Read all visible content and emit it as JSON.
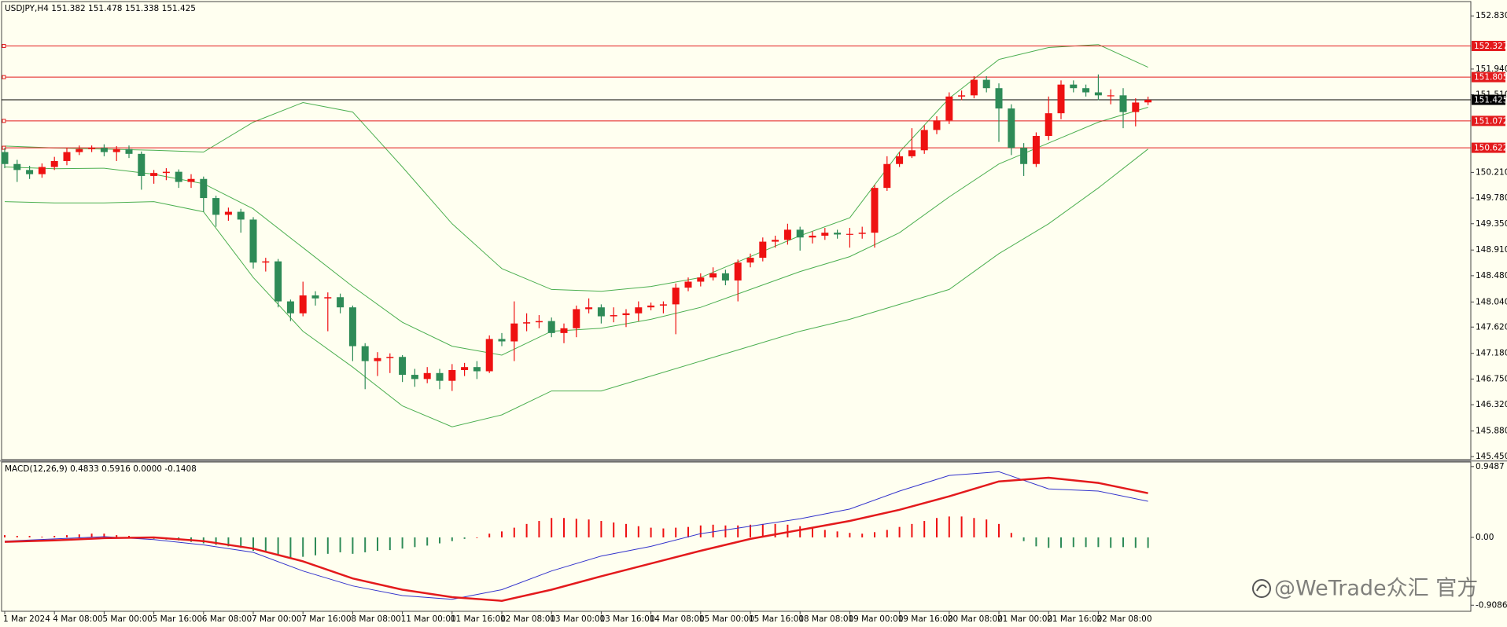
{
  "chart_data": [
    {
      "type": "candlestick",
      "title": "USDJPY,H4  151.382 151.478 151.338 151.425",
      "watermark": "@WeTrade众汇 官方",
      "x_labels": [
        "1 Mar 2024",
        "4 Mar 08:00",
        "5 Mar 00:00",
        "5 Mar 16:00",
        "6 Mar 08:00",
        "7 Mar 00:00",
        "7 Mar 16:00",
        "8 Mar 08:00",
        "11 Mar 00:00",
        "11 Mar 16:00",
        "12 Mar 08:00",
        "13 Mar 00:00",
        "13 Mar 16:00",
        "14 Mar 08:00",
        "15 Mar 00:00",
        "15 Mar 16:00",
        "18 Mar 08:00",
        "19 Mar 00:00",
        "19 Mar 16:00",
        "20 Mar 08:00",
        "21 Mar 00:00",
        "21 Mar 16:00",
        "22 Mar 08:00"
      ],
      "open": [
        150.55,
        150.35,
        150.25,
        150.18,
        150.3,
        150.4,
        150.55,
        150.6,
        150.62,
        150.55,
        150.6,
        150.52,
        150.15,
        150.2,
        150.22,
        150.05,
        150.1,
        149.78,
        149.5,
        149.55,
        149.42,
        148.7,
        148.72,
        148.05,
        147.85,
        148.15,
        148.1,
        148.12,
        147.95,
        147.3,
        147.05,
        147.1,
        147.12,
        146.82,
        146.75,
        146.85,
        146.72,
        146.9,
        146.95,
        146.88,
        147.42,
        147.38,
        147.68,
        147.7,
        147.72,
        147.52,
        147.6,
        147.92,
        147.95,
        147.8,
        147.82,
        147.85,
        147.95,
        147.98,
        148.0,
        148.28,
        148.38,
        148.45,
        148.52,
        148.4,
        148.7,
        148.78,
        149.05,
        149.08,
        149.25,
        149.12,
        149.15,
        149.2,
        149.17,
        149.18,
        149.2,
        149.95,
        150.35,
        150.48,
        150.58,
        150.92,
        151.08,
        151.48,
        151.5,
        151.76,
        151.62,
        151.28,
        150.62,
        150.35,
        150.82,
        151.2,
        151.68,
        151.62,
        151.55,
        151.5,
        151.5,
        151.22,
        151.382
      ],
      "high": [
        150.62,
        150.42,
        150.32,
        150.36,
        150.47,
        150.62,
        150.66,
        150.66,
        150.68,
        150.65,
        150.66,
        150.56,
        150.25,
        150.28,
        150.26,
        150.18,
        150.14,
        149.82,
        149.62,
        149.6,
        149.46,
        148.78,
        148.76,
        148.08,
        148.38,
        148.22,
        148.2,
        148.18,
        147.98,
        147.35,
        147.2,
        147.18,
        147.15,
        146.92,
        146.95,
        146.92,
        147.0,
        147.02,
        147.05,
        147.48,
        147.52,
        148.05,
        147.85,
        147.82,
        147.78,
        147.68,
        147.98,
        148.1,
        148.0,
        147.95,
        147.92,
        148.05,
        148.03,
        148.05,
        148.35,
        148.45,
        148.52,
        148.62,
        148.58,
        148.75,
        148.85,
        149.12,
        149.15,
        149.35,
        149.3,
        149.22,
        149.28,
        149.25,
        149.28,
        149.3,
        150.0,
        150.48,
        150.55,
        150.95,
        151.0,
        151.15,
        151.55,
        151.58,
        151.82,
        151.82,
        151.7,
        151.35,
        150.7,
        150.88,
        151.48,
        151.75,
        151.75,
        151.68,
        151.85,
        151.6,
        151.62,
        151.45,
        151.478
      ],
      "low": [
        150.28,
        150.05,
        150.1,
        150.12,
        150.25,
        150.33,
        150.5,
        150.55,
        150.48,
        150.4,
        150.45,
        149.92,
        150.02,
        150.08,
        149.95,
        149.95,
        149.55,
        149.3,
        149.4,
        149.2,
        148.6,
        148.55,
        147.95,
        147.72,
        147.8,
        147.98,
        147.55,
        147.85,
        147.05,
        146.58,
        146.8,
        146.85,
        146.7,
        146.62,
        146.68,
        146.58,
        146.55,
        146.8,
        146.75,
        146.85,
        147.3,
        147.05,
        147.55,
        147.6,
        147.45,
        147.35,
        147.45,
        147.85,
        147.68,
        147.7,
        147.62,
        147.72,
        147.9,
        147.85,
        147.5,
        148.22,
        148.3,
        148.4,
        148.32,
        148.05,
        148.62,
        148.72,
        148.95,
        149.0,
        148.9,
        149.02,
        149.08,
        149.1,
        148.95,
        149.1,
        148.95,
        149.9,
        150.3,
        150.45,
        150.52,
        150.85,
        151.02,
        151.42,
        151.45,
        151.55,
        150.72,
        150.5,
        150.15,
        150.3,
        150.75,
        151.1,
        151.55,
        151.48,
        151.42,
        151.35,
        150.95,
        150.98,
        151.338
      ],
      "close": [
        150.35,
        150.25,
        150.18,
        150.3,
        150.4,
        150.55,
        150.6,
        150.62,
        150.55,
        150.6,
        150.52,
        150.15,
        150.2,
        150.22,
        150.05,
        150.1,
        149.78,
        149.5,
        149.55,
        149.42,
        148.7,
        148.72,
        148.05,
        147.85,
        148.15,
        148.1,
        148.12,
        147.95,
        147.3,
        147.05,
        147.1,
        147.12,
        146.82,
        146.75,
        146.85,
        146.72,
        146.9,
        146.95,
        146.88,
        147.42,
        147.38,
        147.68,
        147.7,
        147.72,
        147.52,
        147.6,
        147.92,
        147.95,
        147.8,
        147.82,
        147.85,
        147.95,
        147.98,
        148.0,
        148.28,
        148.38,
        148.45,
        148.52,
        148.4,
        148.7,
        148.78,
        149.05,
        149.08,
        149.25,
        149.12,
        149.15,
        149.2,
        149.17,
        149.18,
        149.2,
        149.95,
        150.35,
        150.48,
        150.58,
        150.92,
        151.08,
        151.48,
        151.5,
        151.76,
        151.62,
        151.28,
        150.62,
        150.35,
        150.82,
        151.2,
        151.68,
        151.62,
        151.55,
        151.5,
        151.5,
        151.22,
        151.38,
        151.425
      ],
      "up_color": "#ee1111",
      "down_color": "#2e8b57",
      "ylim": [
        145.4,
        153.07
      ],
      "yticks": [
        {
          "value": 152.83,
          "label": "152.830"
        },
        {
          "value": 151.94,
          "label": "151.940"
        },
        {
          "value": 151.51,
          "label": "151.510"
        },
        {
          "value": 150.21,
          "label": "150.210"
        },
        {
          "value": 149.78,
          "label": "149.780"
        },
        {
          "value": 149.35,
          "label": "149.350"
        },
        {
          "value": 148.91,
          "label": "148.910"
        },
        {
          "value": 148.48,
          "label": "148.480"
        },
        {
          "value": 148.04,
          "label": "148.040"
        },
        {
          "value": 147.62,
          "label": "147.620"
        },
        {
          "value": 147.18,
          "label": "147.180"
        },
        {
          "value": 146.75,
          "label": "146.750"
        },
        {
          "value": 146.32,
          "label": "146.320"
        },
        {
          "value": 145.88,
          "label": "145.880"
        },
        {
          "value": 145.45,
          "label": "145.450"
        }
      ],
      "levels": [
        {
          "value": 152.327,
          "color": "#e31a1c"
        },
        {
          "value": 151.805,
          "color": "#e31a1c"
        },
        {
          "value": 151.425,
          "color": "#000000"
        },
        {
          "value": 151.072,
          "color": "#e31a1c"
        },
        {
          "value": 150.622,
          "color": "#e31a1c"
        }
      ],
      "series": [
        {
          "color": "#4caf50",
          "x": [
            0,
            4,
            8,
            12,
            16,
            20,
            24,
            28,
            32,
            36,
            40,
            44,
            48,
            52,
            56,
            60,
            64,
            68,
            72,
            76,
            80,
            84,
            88,
            92
          ],
          "values": [
            150.65,
            150.62,
            150.6,
            150.58,
            150.55,
            151.05,
            151.38,
            151.22,
            150.3,
            149.35,
            148.6,
            148.25,
            148.22,
            148.3,
            148.45,
            148.8,
            149.15,
            149.45,
            150.55,
            151.45,
            152.1,
            152.3,
            152.35,
            151.97
          ]
        },
        {
          "color": "#4caf50",
          "x": [
            0,
            4,
            8,
            12,
            16,
            20,
            24,
            28,
            32,
            36,
            40,
            44,
            48,
            52,
            56,
            60,
            64,
            68,
            72,
            76,
            80,
            84,
            88,
            92
          ],
          "values": [
            150.3,
            150.27,
            150.28,
            150.18,
            150.02,
            149.6,
            148.95,
            148.3,
            147.7,
            147.3,
            147.15,
            147.55,
            147.6,
            147.75,
            147.95,
            148.25,
            148.55,
            148.8,
            149.2,
            149.8,
            150.35,
            150.7,
            151.05,
            151.3
          ]
        },
        {
          "color": "#4caf50",
          "x": [
            0,
            4,
            8,
            12,
            16,
            20,
            24,
            28,
            32,
            36,
            40,
            44,
            48,
            52,
            56,
            60,
            64,
            68,
            72,
            76,
            80,
            84,
            88,
            92
          ],
          "values": [
            149.72,
            149.7,
            149.7,
            149.72,
            149.55,
            148.45,
            147.55,
            146.95,
            146.3,
            145.95,
            146.15,
            146.55,
            146.55,
            146.8,
            147.05,
            147.3,
            147.55,
            147.75,
            148.0,
            148.25,
            148.85,
            149.35,
            149.95,
            150.6
          ]
        }
      ]
    },
    {
      "type": "macd",
      "title": "MACD(12,26,9) 0.4833 0.5916 0.0000 -0.1408",
      "histogram": {
        "up_color": "#ee1111",
        "down_color": "#2e8b57",
        "values": [
          0.03,
          0.02,
          0.02,
          0.01,
          0.02,
          0.03,
          0.04,
          0.05,
          0.05,
          0.03,
          0.02,
          -0.01,
          -0.02,
          -0.03,
          -0.04,
          -0.06,
          -0.08,
          -0.1,
          -0.12,
          -0.14,
          -0.18,
          -0.2,
          -0.24,
          -0.28,
          -0.26,
          -0.24,
          -0.22,
          -0.2,
          -0.22,
          -0.2,
          -0.18,
          -0.17,
          -0.15,
          -0.13,
          -0.11,
          -0.08,
          -0.05,
          -0.02,
          0.0,
          0.05,
          0.08,
          0.13,
          0.18,
          0.22,
          0.26,
          0.26,
          0.25,
          0.24,
          0.22,
          0.2,
          0.18,
          0.15,
          0.13,
          0.12,
          0.13,
          0.14,
          0.16,
          0.17,
          0.16,
          0.16,
          0.17,
          0.18,
          0.18,
          0.17,
          0.15,
          0.12,
          0.1,
          0.08,
          0.06,
          0.05,
          0.07,
          0.1,
          0.14,
          0.18,
          0.22,
          0.26,
          0.28,
          0.28,
          0.26,
          0.24,
          0.18,
          0.06,
          -0.05,
          -0.12,
          -0.14,
          -0.14,
          -0.13,
          -0.13,
          -0.13,
          -0.14,
          -0.13,
          -0.14,
          -0.1408
        ]
      },
      "ylim": [
        -0.99,
        1.01
      ],
      "yticks": [
        0.9487,
        {
          "value": 0,
          "label": "0.00"
        },
        -0.9086
      ],
      "series": [
        {
          "color": "#3333cc",
          "width": 1,
          "x": [
            0,
            4,
            8,
            12,
            16,
            20,
            24,
            28,
            32,
            36,
            40,
            44,
            48,
            52,
            56,
            60,
            64,
            68,
            72,
            76,
            80,
            84,
            88,
            92
          ],
          "values": [
            -0.05,
            -0.02,
            0.01,
            -0.03,
            -0.1,
            -0.2,
            -0.45,
            -0.65,
            -0.78,
            -0.83,
            -0.7,
            -0.45,
            -0.25,
            -0.12,
            0.05,
            0.15,
            0.25,
            0.38,
            0.62,
            0.83,
            0.88,
            0.65,
            0.62,
            0.4833
          ]
        },
        {
          "color": "#e31a1c",
          "width": 2.5,
          "x": [
            0,
            4,
            8,
            12,
            16,
            20,
            24,
            28,
            32,
            36,
            40,
            44,
            48,
            52,
            56,
            60,
            64,
            68,
            72,
            76,
            80,
            84,
            88,
            92
          ],
          "values": [
            -0.06,
            -0.04,
            -0.01,
            0.0,
            -0.05,
            -0.15,
            -0.32,
            -0.55,
            -0.7,
            -0.8,
            -0.85,
            -0.7,
            -0.52,
            -0.35,
            -0.18,
            -0.02,
            0.1,
            0.22,
            0.37,
            0.55,
            0.75,
            0.8,
            0.73,
            0.5916
          ]
        }
      ]
    }
  ]
}
